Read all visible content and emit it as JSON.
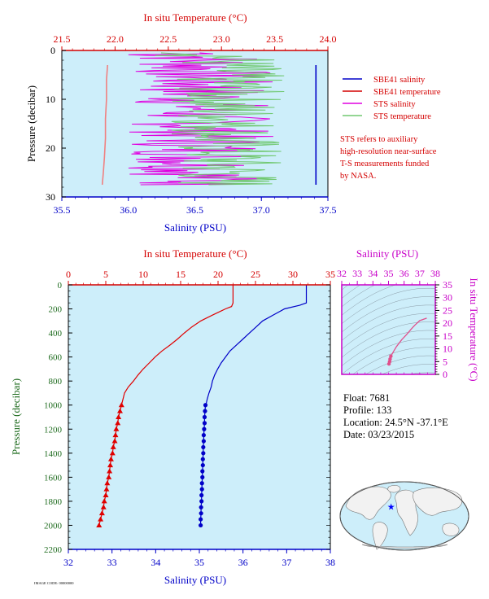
{
  "page": {
    "footer_code": "IMAGE CODE: 00000000"
  },
  "chart_data": [
    {
      "id": "near_surface_profile",
      "type": "line",
      "title": "",
      "top_axis_label": "In situ Temperature (°C)",
      "top_axis_ticks": [
        "21.5",
        "22.0",
        "22.5",
        "23.0",
        "23.5",
        "24.0"
      ],
      "top_axis_range": [
        21.5,
        24.0
      ],
      "bottom_axis_label": "Salinity (PSU)",
      "bottom_axis_ticks": [
        "35.5",
        "36.0",
        "36.5",
        "37.0",
        "37.5"
      ],
      "bottom_axis_range": [
        35.5,
        37.5
      ],
      "ylabel": "Pressure (decibar)",
      "y_ticks": [
        "0",
        "10",
        "20",
        "30"
      ],
      "ylim": [
        0,
        30
      ],
      "y_inverted": true,
      "legend": [
        "SBE41 salinity",
        "SBE41 temperature",
        "STS salinity",
        "STS temperature"
      ],
      "note": [
        "STS refers to auxiliary",
        "high-resolution near-surface",
        "T-S measurements funded",
        "by NASA."
      ],
      "series": [
        {
          "name": "SBE41 salinity",
          "axis": "salinity",
          "color": "#0000c8",
          "pressure": [
            3,
            10,
            20,
            27.5
          ],
          "values": [
            37.41,
            37.41,
            37.41,
            37.41
          ]
        },
        {
          "name": "SBE41 temperature",
          "axis": "temperature",
          "color": "#f08080",
          "pressure": [
            3,
            6,
            10,
            14,
            18,
            22,
            25,
            27.5
          ],
          "values": [
            21.93,
            21.92,
            21.92,
            21.91,
            21.91,
            21.9,
            21.89,
            21.88
          ]
        },
        {
          "name": "STS salinity",
          "axis": "salinity",
          "color": "#e000e0",
          "center": 36.55,
          "spread": 0.55,
          "p_range": [
            0.5,
            27.5
          ]
        },
        {
          "name": "STS temperature",
          "axis": "temperature",
          "color": "#70c870",
          "center": 23.05,
          "spread": 0.55,
          "p_range": [
            0.5,
            27.5
          ]
        }
      ]
    },
    {
      "id": "full_profile",
      "type": "line",
      "title": "",
      "top_axis_label": "In situ Temperature (°C)",
      "top_axis_ticks": [
        "0",
        "5",
        "10",
        "15",
        "20",
        "25",
        "30",
        "35"
      ],
      "top_axis_range": [
        0,
        35
      ],
      "bottom_axis_label": "Salinity (PSU)",
      "bottom_axis_ticks": [
        "32",
        "33",
        "34",
        "35",
        "36",
        "37",
        "38"
      ],
      "bottom_axis_range": [
        32,
        38
      ],
      "ylabel": "Pressure (decibar)",
      "y_ticks": [
        "0",
        "200",
        "400",
        "600",
        "800",
        "1000",
        "1200",
        "1400",
        "1600",
        "1800",
        "2000",
        "2200"
      ],
      "ylim": [
        0,
        2200
      ],
      "y_inverted": true,
      "series": [
        {
          "name": "Temperature",
          "axis": "temperature",
          "color": "#e00000",
          "pressure": [
            0,
            150,
            180,
            200,
            250,
            300,
            350,
            400,
            450,
            500,
            550,
            600,
            650,
            700,
            750,
            800,
            850,
            900,
            950,
            1000
          ],
          "values": [
            22.0,
            22.0,
            21.8,
            21.0,
            19.3,
            17.7,
            16.5,
            15.5,
            14.6,
            13.6,
            12.5,
            11.6,
            10.8,
            10.0,
            9.3,
            8.7,
            8.0,
            7.5,
            7.3,
            7.1
          ]
        },
        {
          "name": "Temperature samples",
          "axis": "temperature",
          "color": "#e00000",
          "marker": "triangle",
          "pressure": [
            1000,
            1050,
            1100,
            1150,
            1200,
            1250,
            1300,
            1350,
            1400,
            1450,
            1500,
            1550,
            1600,
            1650,
            1700,
            1750,
            1800,
            1850,
            1900,
            1950,
            2000
          ],
          "values": [
            7.1,
            6.9,
            6.7,
            6.6,
            6.4,
            6.3,
            6.2,
            6.0,
            5.9,
            5.7,
            5.6,
            5.5,
            5.4,
            5.2,
            5.1,
            5.0,
            4.8,
            4.7,
            4.5,
            4.3,
            4.1
          ]
        },
        {
          "name": "Salinity",
          "axis": "salinity",
          "color": "#0000c8",
          "pressure": [
            0,
            150,
            170,
            200,
            250,
            300,
            350,
            400,
            450,
            500,
            550,
            600,
            650,
            700,
            750,
            800,
            850,
            900,
            950,
            1000
          ],
          "values": [
            37.45,
            37.45,
            37.3,
            36.95,
            36.7,
            36.45,
            36.3,
            36.15,
            36.0,
            35.85,
            35.7,
            35.6,
            35.5,
            35.42,
            35.35,
            35.3,
            35.27,
            35.22,
            35.18,
            35.15
          ]
        },
        {
          "name": "Salinity samples",
          "axis": "salinity",
          "color": "#0000c8",
          "marker": "dot",
          "pressure": [
            1000,
            1050,
            1100,
            1150,
            1200,
            1250,
            1300,
            1350,
            1400,
            1450,
            1500,
            1550,
            1600,
            1650,
            1700,
            1750,
            1800,
            1850,
            1900,
            1950,
            2000
          ],
          "values": [
            35.14,
            35.13,
            35.12,
            35.12,
            35.11,
            35.1,
            35.1,
            35.09,
            35.09,
            35.08,
            35.08,
            35.07,
            35.07,
            35.06,
            35.06,
            35.05,
            35.05,
            35.04,
            35.04,
            35.03,
            35.03
          ]
        }
      ]
    },
    {
      "id": "ts_diagram",
      "type": "scatter",
      "top_axis_label": "Salinity (PSU)",
      "x_ticks": [
        "32",
        "33",
        "34",
        "35",
        "36",
        "37",
        "38"
      ],
      "xlim": [
        32,
        38
      ],
      "right_axis_label": "In situ Temperature (°C)",
      "y_ticks": [
        "0",
        "5",
        "10",
        "15",
        "20",
        "25",
        "30",
        "35"
      ],
      "ylim": [
        0,
        35
      ],
      "series": [
        {
          "name": "T-S",
          "color": "#e0508c",
          "x": [
            35.03,
            35.07,
            35.1,
            35.15,
            35.3,
            35.5,
            35.85,
            36.15,
            36.45,
            36.7,
            37.0,
            37.45
          ],
          "y": [
            4.1,
            5.0,
            6.0,
            7.1,
            8.7,
            10.8,
            13.6,
            15.5,
            17.7,
            19.3,
            21.0,
            22.0
          ]
        }
      ]
    }
  ],
  "float_info": {
    "float": "Float:  7681",
    "profile": "Profile:  133",
    "location": "Location:  24.5°N  -37.1°E",
    "date": "Date:  03/23/2015"
  },
  "map": {
    "marker_lat": 24.5,
    "marker_lon": -37.1,
    "marker_color": "#0000ff",
    "ocean_color": "#cdeefa",
    "land_color": "#f2f2f2"
  },
  "colors": {
    "plot_bg": "#cdeefa",
    "ts_bg": "#cdeefa",
    "temperature_axis": "#d40000",
    "salinity_axis": "#0000c8",
    "pressure_axis": "#1e6b1e",
    "ts_axis": "#c800c8"
  }
}
